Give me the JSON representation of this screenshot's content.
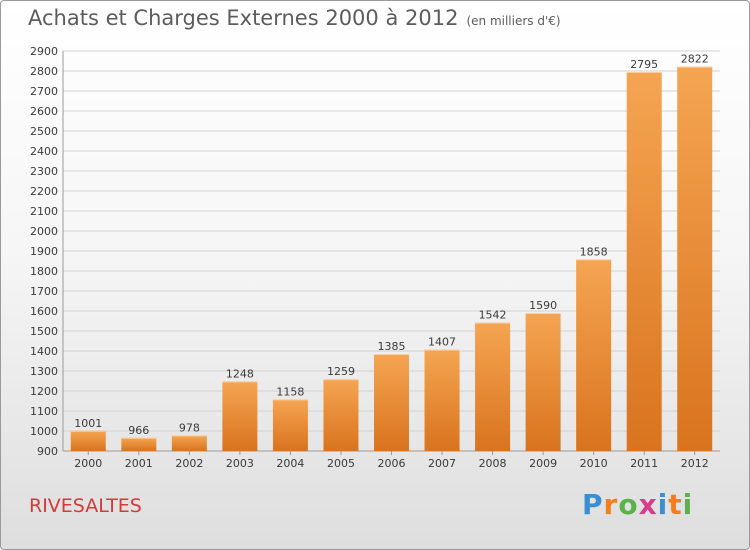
{
  "header": {
    "title": "Achats et Charges Externes 2000 à 2012",
    "unit": "(en milliers d'€)"
  },
  "footer": {
    "commune": "RIVESALTES",
    "logo_letters": [
      "P",
      "r",
      "o",
      "x",
      "i",
      "t",
      "i"
    ],
    "logo_colors": [
      "#3a8fd0",
      "#f07f1e",
      "#5ab24a",
      "#d83a8c",
      "#3a8fd0",
      "#f07f1e",
      "#5ab24a"
    ]
  },
  "colors": {
    "bar_light": "#f5a552",
    "bar_dark": "#d9731e",
    "commune": "#d43a3a"
  },
  "chart_data": {
    "type": "bar",
    "title": "Achats et Charges Externes 2000 à 2012",
    "subtitle": "(en milliers d'€)",
    "categories": [
      "2000",
      "2001",
      "2002",
      "2003",
      "2004",
      "2005",
      "2006",
      "2007",
      "2008",
      "2009",
      "2010",
      "2011",
      "2012"
    ],
    "values": [
      1001,
      966,
      978,
      1248,
      1158,
      1259,
      1385,
      1407,
      1542,
      1590,
      1858,
      2795,
      2822
    ],
    "ylim": [
      900,
      2900
    ],
    "yticks": [
      900,
      1000,
      1100,
      1200,
      1300,
      1400,
      1500,
      1600,
      1700,
      1800,
      1900,
      2000,
      2100,
      2200,
      2300,
      2400,
      2500,
      2600,
      2700,
      2800,
      2900
    ],
    "grid": true,
    "data_labels": true,
    "legend": "none"
  }
}
